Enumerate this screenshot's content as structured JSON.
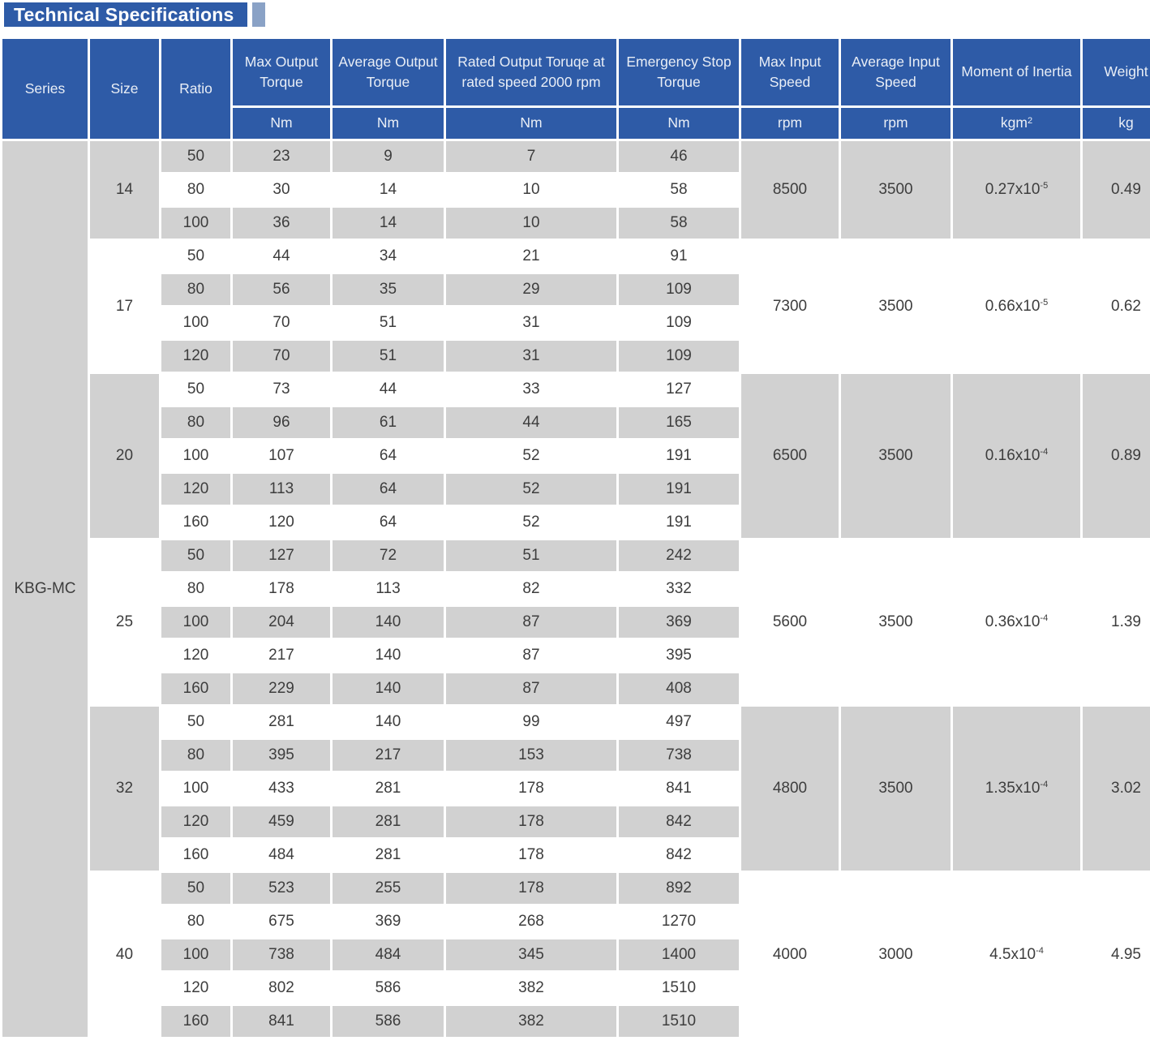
{
  "title": "Technical Specifications",
  "colors": {
    "header_blue": "#2e5ba7",
    "title_accent_blue": "#8aa2c6",
    "row_gray": "#d1d1d1",
    "body_text": "#3d3d3d",
    "header_text": "#e9eef6"
  },
  "table": {
    "columns": [
      {
        "label": "Series",
        "unit": ""
      },
      {
        "label": "Size",
        "unit": ""
      },
      {
        "label": "Ratio",
        "unit": ""
      },
      {
        "label": "Max Output Torque",
        "unit": "Nm"
      },
      {
        "label": "Average Output Torque",
        "unit": "Nm"
      },
      {
        "label": "Rated Output Toruqe at rated speed 2000 rpm",
        "unit": "Nm"
      },
      {
        "label": "Emergency Stop Torque",
        "unit": "Nm"
      },
      {
        "label": "Max Input Speed",
        "unit": "rpm"
      },
      {
        "label": "Average Input Speed",
        "unit": "rpm"
      },
      {
        "label": "Moment of Inertia",
        "unit": "kgm",
        "unit_sup": "2"
      },
      {
        "label": "Weight",
        "unit": "kg"
      }
    ],
    "series": "KBG-MC",
    "groups": [
      {
        "size": "14",
        "rows": [
          {
            "ratio": "50",
            "max_output_torque": "23",
            "avg_output_torque": "9",
            "rated_output_torque": "7",
            "emergency_stop_torque": "46"
          },
          {
            "ratio": "80",
            "max_output_torque": "30",
            "avg_output_torque": "14",
            "rated_output_torque": "10",
            "emergency_stop_torque": "58"
          },
          {
            "ratio": "100",
            "max_output_torque": "36",
            "avg_output_torque": "14",
            "rated_output_torque": "10",
            "emergency_stop_torque": "58"
          }
        ],
        "max_input_speed": "8500",
        "avg_input_speed": "3500",
        "inertia_base": "0.27x10",
        "inertia_exp": "-5",
        "weight": "0.49"
      },
      {
        "size": "17",
        "rows": [
          {
            "ratio": "50",
            "max_output_torque": "44",
            "avg_output_torque": "34",
            "rated_output_torque": "21",
            "emergency_stop_torque": "91"
          },
          {
            "ratio": "80",
            "max_output_torque": "56",
            "avg_output_torque": "35",
            "rated_output_torque": "29",
            "emergency_stop_torque": "109"
          },
          {
            "ratio": "100",
            "max_output_torque": "70",
            "avg_output_torque": "51",
            "rated_output_torque": "31",
            "emergency_stop_torque": "109"
          },
          {
            "ratio": "120",
            "max_output_torque": "70",
            "avg_output_torque": "51",
            "rated_output_torque": "31",
            "emergency_stop_torque": "109"
          }
        ],
        "max_input_speed": "7300",
        "avg_input_speed": "3500",
        "inertia_base": "0.66x10",
        "inertia_exp": "-5",
        "weight": "0.62"
      },
      {
        "size": "20",
        "rows": [
          {
            "ratio": "50",
            "max_output_torque": "73",
            "avg_output_torque": "44",
            "rated_output_torque": "33",
            "emergency_stop_torque": "127"
          },
          {
            "ratio": "80",
            "max_output_torque": "96",
            "avg_output_torque": "61",
            "rated_output_torque": "44",
            "emergency_stop_torque": "165"
          },
          {
            "ratio": "100",
            "max_output_torque": "107",
            "avg_output_torque": "64",
            "rated_output_torque": "52",
            "emergency_stop_torque": "191"
          },
          {
            "ratio": "120",
            "max_output_torque": "113",
            "avg_output_torque": "64",
            "rated_output_torque": "52",
            "emergency_stop_torque": "191"
          },
          {
            "ratio": "160",
            "max_output_torque": "120",
            "avg_output_torque": "64",
            "rated_output_torque": "52",
            "emergency_stop_torque": "191"
          }
        ],
        "max_input_speed": "6500",
        "avg_input_speed": "3500",
        "inertia_base": "0.16x10",
        "inertia_exp": "-4",
        "weight": "0.89"
      },
      {
        "size": "25",
        "rows": [
          {
            "ratio": "50",
            "max_output_torque": "127",
            "avg_output_torque": "72",
            "rated_output_torque": "51",
            "emergency_stop_torque": "242"
          },
          {
            "ratio": "80",
            "max_output_torque": "178",
            "avg_output_torque": "113",
            "rated_output_torque": "82",
            "emergency_stop_torque": "332"
          },
          {
            "ratio": "100",
            "max_output_torque": "204",
            "avg_output_torque": "140",
            "rated_output_torque": "87",
            "emergency_stop_torque": "369"
          },
          {
            "ratio": "120",
            "max_output_torque": "217",
            "avg_output_torque": "140",
            "rated_output_torque": "87",
            "emergency_stop_torque": "395"
          },
          {
            "ratio": "160",
            "max_output_torque": "229",
            "avg_output_torque": "140",
            "rated_output_torque": "87",
            "emergency_stop_torque": "408"
          }
        ],
        "max_input_speed": "5600",
        "avg_input_speed": "3500",
        "inertia_base": "0.36x10",
        "inertia_exp": "-4",
        "weight": "1.39"
      },
      {
        "size": "32",
        "rows": [
          {
            "ratio": "50",
            "max_output_torque": "281",
            "avg_output_torque": "140",
            "rated_output_torque": "99",
            "emergency_stop_torque": "497"
          },
          {
            "ratio": "80",
            "max_output_torque": "395",
            "avg_output_torque": "217",
            "rated_output_torque": "153",
            "emergency_stop_torque": "738"
          },
          {
            "ratio": "100",
            "max_output_torque": "433",
            "avg_output_torque": "281",
            "rated_output_torque": "178",
            "emergency_stop_torque": "841"
          },
          {
            "ratio": "120",
            "max_output_torque": "459",
            "avg_output_torque": "281",
            "rated_output_torque": "178",
            "emergency_stop_torque": "842"
          },
          {
            "ratio": "160",
            "max_output_torque": "484",
            "avg_output_torque": "281",
            "rated_output_torque": "178",
            "emergency_stop_torque": "842"
          }
        ],
        "max_input_speed": "4800",
        "avg_input_speed": "3500",
        "inertia_base": "1.35x10",
        "inertia_exp": "-4",
        "weight": "3.02"
      },
      {
        "size": "40",
        "rows": [
          {
            "ratio": "50",
            "max_output_torque": "523",
            "avg_output_torque": "255",
            "rated_output_torque": "178",
            "emergency_stop_torque": "892"
          },
          {
            "ratio": "80",
            "max_output_torque": "675",
            "avg_output_torque": "369",
            "rated_output_torque": "268",
            "emergency_stop_torque": "1270"
          },
          {
            "ratio": "100",
            "max_output_torque": "738",
            "avg_output_torque": "484",
            "rated_output_torque": "345",
            "emergency_stop_torque": "1400"
          },
          {
            "ratio": "120",
            "max_output_torque": "802",
            "avg_output_torque": "586",
            "rated_output_torque": "382",
            "emergency_stop_torque": "1510"
          },
          {
            "ratio": "160",
            "max_output_torque": "841",
            "avg_output_torque": "586",
            "rated_output_torque": "382",
            "emergency_stop_torque": "1510"
          }
        ],
        "max_input_speed": "4000",
        "avg_input_speed": "3000",
        "inertia_base": "4.5x10",
        "inertia_exp": "-4",
        "weight": "4.95"
      }
    ]
  }
}
